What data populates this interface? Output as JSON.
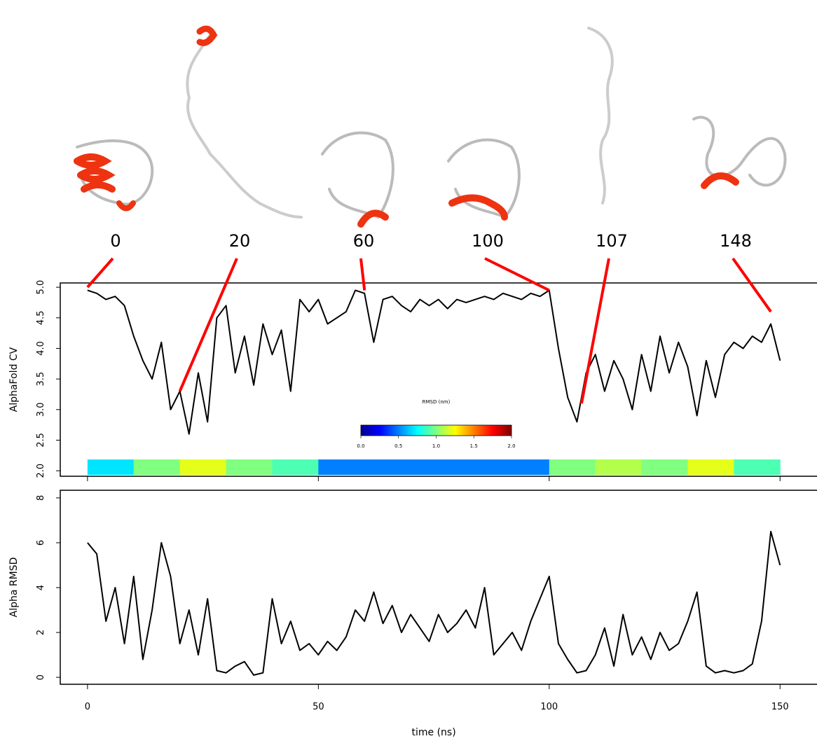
{
  "chart_data": [
    {
      "type": "line",
      "ylabel": "AlphaFold CV",
      "color": "#000000",
      "xlim": [
        -5.9,
        158
      ],
      "xticks": [
        0,
        50,
        100,
        150
      ],
      "ylim": [
        1.91,
        5.07
      ],
      "yticks": [
        {
          "value": 2.0,
          "label": "2.0"
        },
        {
          "value": 2.5,
          "label": "2.5"
        },
        {
          "value": 3.0,
          "label": "3.0"
        },
        {
          "value": 3.5,
          "label": "3.5"
        },
        {
          "value": 4.0,
          "label": "4.0"
        },
        {
          "value": 4.5,
          "label": "4.5"
        },
        {
          "value": 5.0,
          "label": "5.0"
        }
      ],
      "x": [
        0,
        2,
        4,
        6,
        8,
        10,
        12,
        14,
        16,
        18,
        20,
        22,
        24,
        26,
        28,
        30,
        32,
        34,
        36,
        38,
        40,
        42,
        44,
        46,
        48,
        50,
        52,
        54,
        56,
        58,
        60,
        62,
        64,
        66,
        68,
        70,
        72,
        74,
        76,
        78,
        80,
        82,
        84,
        86,
        88,
        90,
        92,
        94,
        96,
        98,
        100,
        102,
        104,
        106,
        108,
        110,
        112,
        114,
        116,
        118,
        120,
        122,
        124,
        126,
        128,
        130,
        132,
        134,
        136,
        138,
        140,
        142,
        144,
        146,
        148,
        150
      ],
      "values": [
        4.95,
        4.9,
        4.8,
        4.85,
        4.7,
        4.2,
        3.8,
        3.5,
        4.1,
        3.0,
        3.3,
        2.6,
        3.6,
        2.8,
        4.5,
        4.7,
        3.6,
        4.2,
        3.4,
        4.4,
        3.9,
        4.3,
        3.3,
        4.8,
        4.6,
        4.8,
        4.4,
        4.5,
        4.6,
        4.95,
        4.9,
        4.1,
        4.8,
        4.85,
        4.7,
        4.6,
        4.8,
        4.7,
        4.8,
        4.65,
        4.8,
        4.75,
        4.8,
        4.85,
        4.8,
        4.9,
        4.85,
        4.8,
        4.9,
        4.85,
        4.95,
        4.0,
        3.2,
        2.8,
        3.6,
        3.9,
        3.3,
        3.8,
        3.5,
        3.0,
        3.9,
        3.3,
        4.2,
        3.6,
        4.1,
        3.7,
        2.9,
        3.8,
        3.2,
        3.9,
        4.1,
        4.0,
        4.2,
        4.1,
        4.4,
        3.8
      ],
      "snapshots": {
        "times": [
          0,
          20,
          60,
          100,
          107,
          148
        ],
        "cv": [
          5.0,
          3.3,
          4.95,
          4.95,
          3.1,
          4.6
        ],
        "color": "#ff0000"
      },
      "strip": {
        "edges": [
          0,
          10,
          20,
          30,
          40,
          50,
          60,
          70,
          80,
          90,
          100,
          110,
          120,
          130,
          140,
          150
        ],
        "values": [
          0.7,
          1.0,
          1.2,
          1.0,
          0.9,
          0.5,
          0.5,
          0.5,
          0.5,
          0.5,
          1.0,
          1.1,
          1.0,
          1.2,
          0.9
        ]
      },
      "colorbar": {
        "title": "RMSD (nm)",
        "lim": [
          0,
          2
        ],
        "ticks": [
          {
            "value": 0,
            "label": "0.0"
          },
          {
            "value": 0.5,
            "label": "0.5"
          },
          {
            "value": 1,
            "label": "1.0"
          },
          {
            "value": 1.5,
            "label": "1.5"
          },
          {
            "value": 2,
            "label": "2.0"
          }
        ]
      }
    },
    {
      "type": "line",
      "ylabel": "Alpha RMSD",
      "xlabel": "time (ns)",
      "color": "#000000",
      "xlim": [
        -5.9,
        158
      ],
      "xticks": [
        0,
        50,
        100,
        150
      ],
      "ylim": [
        -0.31,
        8.34
      ],
      "yticks": [
        0,
        2,
        4,
        6,
        8
      ],
      "x": [
        0,
        2,
        4,
        6,
        8,
        10,
        12,
        14,
        16,
        18,
        20,
        22,
        24,
        26,
        28,
        30,
        32,
        34,
        36,
        38,
        40,
        42,
        44,
        46,
        48,
        50,
        52,
        54,
        56,
        58,
        60,
        62,
        64,
        66,
        68,
        70,
        72,
        74,
        76,
        78,
        80,
        82,
        84,
        86,
        88,
        90,
        92,
        94,
        96,
        98,
        100,
        102,
        104,
        106,
        108,
        110,
        112,
        114,
        116,
        118,
        120,
        122,
        124,
        126,
        128,
        130,
        132,
        134,
        136,
        138,
        140,
        142,
        144,
        146,
        148,
        150
      ],
      "values": [
        6.0,
        5.5,
        2.5,
        4.0,
        1.5,
        4.5,
        0.8,
        3.0,
        6.0,
        4.5,
        1.5,
        3.0,
        1.0,
        3.5,
        0.3,
        0.2,
        0.5,
        0.7,
        0.1,
        0.2,
        3.5,
        1.5,
        2.5,
        1.2,
        1.5,
        1.0,
        1.6,
        1.2,
        1.8,
        3.0,
        2.5,
        3.8,
        2.4,
        3.2,
        2.0,
        2.8,
        2.2,
        1.6,
        2.8,
        2.0,
        2.4,
        3.0,
        2.2,
        4.0,
        1.0,
        1.5,
        2.0,
        1.2,
        2.5,
        3.5,
        4.5,
        1.5,
        0.8,
        0.2,
        0.3,
        1.0,
        2.2,
        0.5,
        2.8,
        1.0,
        1.8,
        0.8,
        2.0,
        1.2,
        1.5,
        2.5,
        3.8,
        0.5,
        0.2,
        0.3,
        0.2,
        0.3,
        0.6,
        2.5,
        6.5,
        5.0
      ]
    }
  ]
}
